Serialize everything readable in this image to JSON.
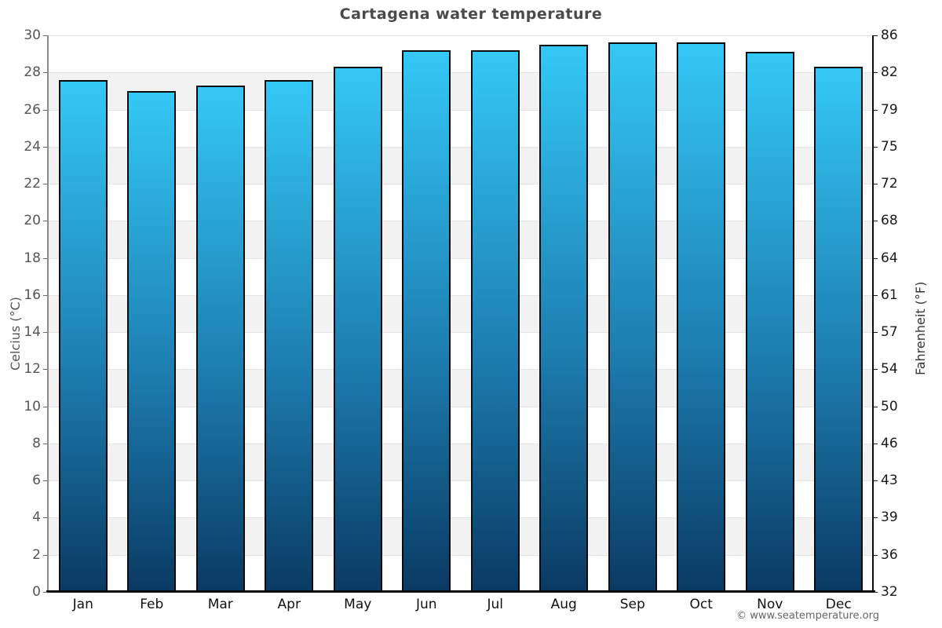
{
  "chart_data": {
    "type": "bar",
    "title": "Cartagena water temperature",
    "categories": [
      "Jan",
      "Feb",
      "Mar",
      "Apr",
      "May",
      "Jun",
      "Jul",
      "Aug",
      "Sep",
      "Oct",
      "Nov",
      "Dec"
    ],
    "values": [
      27.6,
      27.0,
      27.3,
      27.6,
      28.3,
      29.2,
      29.2,
      29.5,
      29.6,
      29.6,
      29.1,
      28.3
    ],
    "ylabel_left": "Celcius (°C)",
    "ylabel_right": "Fahrenheit (°F)",
    "ylim": [
      0,
      30
    ],
    "y_ticks_celsius": [
      30,
      28,
      26,
      24,
      22,
      20,
      18,
      16,
      14,
      12,
      10,
      8,
      6,
      4,
      2,
      0
    ],
    "y_ticks_fahrenheit": [
      86,
      82,
      79,
      75,
      72,
      68,
      64,
      61,
      57,
      54,
      50,
      46,
      43,
      39,
      36,
      32
    ],
    "grid": "horizontal gridlines with alternating shaded bands",
    "legend_position": "none",
    "colors": {
      "bar_gradient_top": "#34c8f6",
      "bar_gradient_bottom": "#0a3a63",
      "bar_border": "#0c0c0c",
      "band_shaded": "#f2f2f2",
      "band_plain": "#ffffff",
      "gridline": "#e4e4e4",
      "title_text": "#4a4a4a",
      "axis_text_left": "#555555",
      "axis_text_right": "#1a1a1a"
    }
  },
  "footer": {
    "credit": "© www.seatemperature.org"
  }
}
